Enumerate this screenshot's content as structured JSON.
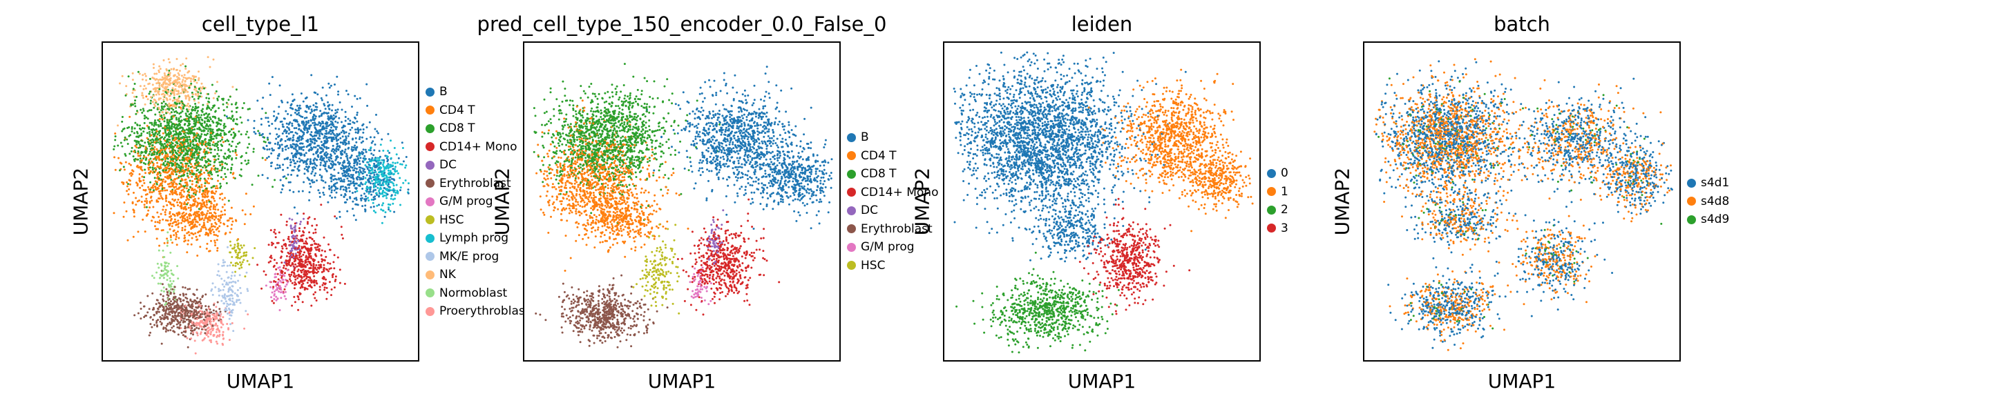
{
  "figure": {
    "colors": {
      "B": "#1f77b4",
      "CD4 T": "#ff7f0e",
      "CD8 T": "#2ca02c",
      "CD14+ Mono": "#d62728",
      "DC": "#9467bd",
      "Erythroblast": "#8c564b",
      "G/M prog": "#e377c2",
      "HSC": "#bcbd22",
      "Lymph prog": "#17becf",
      "MK/E prog": "#aec7e8",
      "NK": "#ffbb78",
      "Normoblast": "#98df8a",
      "Proerythroblast": "#ff9896",
      "0": "#1f77b4",
      "1": "#ff7f0e",
      "2": "#2ca02c",
      "3": "#d62728",
      "s4d1": "#1f77b4",
      "s4d8": "#ff7f0e",
      "s4d9": "#2ca02c"
    }
  },
  "chart_data": [
    {
      "type": "scatter",
      "title": "cell_type_l1",
      "xlabel": "UMAP1",
      "ylabel": "UMAP2",
      "ticks": "none",
      "legend": "right",
      "categories": [
        "B",
        "CD4 T",
        "CD8 T",
        "CD14+ Mono",
        "DC",
        "Erythroblast",
        "G/M prog",
        "HSC",
        "Lymph prog",
        "MK/E prog",
        "NK",
        "Normoblast",
        "Proerythroblast"
      ],
      "clusters": [
        {
          "series": "CD8 T",
          "x": 0.26,
          "y": 0.7,
          "rx": 0.17,
          "ry": 0.13,
          "n": 1300
        },
        {
          "series": "CD4 T",
          "x": 0.22,
          "y": 0.58,
          "rx": 0.14,
          "ry": 0.14,
          "n": 700
        },
        {
          "series": "NK",
          "x": 0.22,
          "y": 0.86,
          "rx": 0.1,
          "ry": 0.07,
          "n": 350
        },
        {
          "series": "CD4 T",
          "x": 0.3,
          "y": 0.45,
          "rx": 0.11,
          "ry": 0.08,
          "n": 350
        },
        {
          "series": "B",
          "x": 0.67,
          "y": 0.7,
          "rx": 0.15,
          "ry": 0.12,
          "n": 900
        },
        {
          "series": "B",
          "x": 0.8,
          "y": 0.58,
          "rx": 0.11,
          "ry": 0.09,
          "n": 350
        },
        {
          "series": "Lymph prog",
          "x": 0.88,
          "y": 0.58,
          "rx": 0.06,
          "ry": 0.08,
          "n": 250
        },
        {
          "series": "CD14+ Mono",
          "x": 0.63,
          "y": 0.31,
          "rx": 0.09,
          "ry": 0.1,
          "n": 500
        },
        {
          "series": "DC",
          "x": 0.6,
          "y": 0.38,
          "rx": 0.02,
          "ry": 0.06,
          "n": 60
        },
        {
          "series": "G/M prog",
          "x": 0.55,
          "y": 0.24,
          "rx": 0.03,
          "ry": 0.05,
          "n": 60
        },
        {
          "series": "Erythroblast",
          "x": 0.24,
          "y": 0.16,
          "rx": 0.09,
          "ry": 0.06,
          "n": 450
        },
        {
          "series": "Proerythroblast",
          "x": 0.33,
          "y": 0.12,
          "rx": 0.07,
          "ry": 0.05,
          "n": 200
        },
        {
          "series": "MK/E prog",
          "x": 0.4,
          "y": 0.22,
          "rx": 0.04,
          "ry": 0.08,
          "n": 120
        },
        {
          "series": "Normoblast",
          "x": 0.2,
          "y": 0.28,
          "rx": 0.03,
          "ry": 0.08,
          "n": 80
        },
        {
          "series": "HSC",
          "x": 0.43,
          "y": 0.33,
          "rx": 0.03,
          "ry": 0.05,
          "n": 60
        }
      ]
    },
    {
      "type": "scatter",
      "title": "pred_cell_type_150_encoder_0.0_False_0",
      "xlabel": "UMAP1",
      "ylabel": "UMAP2",
      "ticks": "none",
      "legend": "right",
      "categories": [
        "B",
        "CD4 T",
        "CD8 T",
        "CD14+ Mono",
        "DC",
        "Erythroblast",
        "G/M prog",
        "HSC"
      ],
      "clusters": [
        {
          "series": "CD8 T",
          "x": 0.26,
          "y": 0.7,
          "rx": 0.17,
          "ry": 0.13,
          "n": 1300
        },
        {
          "series": "CD4 T",
          "x": 0.22,
          "y": 0.57,
          "rx": 0.15,
          "ry": 0.15,
          "n": 900
        },
        {
          "series": "CD4 T",
          "x": 0.3,
          "y": 0.45,
          "rx": 0.11,
          "ry": 0.08,
          "n": 350
        },
        {
          "series": "B",
          "x": 0.67,
          "y": 0.7,
          "rx": 0.15,
          "ry": 0.12,
          "n": 900
        },
        {
          "series": "B",
          "x": 0.84,
          "y": 0.58,
          "rx": 0.13,
          "ry": 0.09,
          "n": 500
        },
        {
          "series": "CD14+ Mono",
          "x": 0.63,
          "y": 0.31,
          "rx": 0.09,
          "ry": 0.1,
          "n": 500
        },
        {
          "series": "DC",
          "x": 0.6,
          "y": 0.38,
          "rx": 0.02,
          "ry": 0.06,
          "n": 60
        },
        {
          "series": "G/M prog",
          "x": 0.55,
          "y": 0.24,
          "rx": 0.03,
          "ry": 0.05,
          "n": 60
        },
        {
          "series": "Erythroblast",
          "x": 0.25,
          "y": 0.15,
          "rx": 0.11,
          "ry": 0.07,
          "n": 600
        },
        {
          "series": "HSC",
          "x": 0.42,
          "y": 0.28,
          "rx": 0.05,
          "ry": 0.09,
          "n": 160
        }
      ]
    },
    {
      "type": "scatter",
      "title": "leiden",
      "xlabel": "UMAP1",
      "ylabel": "UMAP2",
      "ticks": "none",
      "legend": "right",
      "categories": [
        "0",
        "1",
        "2",
        "3"
      ],
      "clusters": [
        {
          "series": "0",
          "x": 0.3,
          "y": 0.7,
          "rx": 0.24,
          "ry": 0.2,
          "n": 2500
        },
        {
          "series": "0",
          "x": 0.4,
          "y": 0.42,
          "rx": 0.1,
          "ry": 0.08,
          "n": 300
        },
        {
          "series": "1",
          "x": 0.72,
          "y": 0.7,
          "rx": 0.14,
          "ry": 0.13,
          "n": 900
        },
        {
          "series": "1",
          "x": 0.86,
          "y": 0.57,
          "rx": 0.09,
          "ry": 0.08,
          "n": 350
        },
        {
          "series": "3",
          "x": 0.58,
          "y": 0.32,
          "rx": 0.09,
          "ry": 0.11,
          "n": 500
        },
        {
          "series": "2",
          "x": 0.32,
          "y": 0.16,
          "rx": 0.14,
          "ry": 0.09,
          "n": 700
        }
      ]
    },
    {
      "type": "scatter",
      "title": "batch",
      "xlabel": "UMAP1",
      "ylabel": "UMAP2",
      "ticks": "none",
      "legend": "right",
      "categories": [
        "s4d1",
        "s4d8",
        "s4d9"
      ],
      "mixed": true,
      "clusters": [
        {
          "x": 0.26,
          "y": 0.7,
          "rx": 0.19,
          "ry": 0.15,
          "n": 2000
        },
        {
          "x": 0.3,
          "y": 0.45,
          "rx": 0.12,
          "ry": 0.08,
          "n": 400
        },
        {
          "x": 0.67,
          "y": 0.7,
          "rx": 0.15,
          "ry": 0.12,
          "n": 800
        },
        {
          "x": 0.85,
          "y": 0.58,
          "rx": 0.1,
          "ry": 0.09,
          "n": 450
        },
        {
          "x": 0.6,
          "y": 0.32,
          "rx": 0.1,
          "ry": 0.1,
          "n": 450
        },
        {
          "x": 0.27,
          "y": 0.18,
          "rx": 0.12,
          "ry": 0.08,
          "n": 600
        }
      ],
      "mix_weights": {
        "s4d1": 0.52,
        "s4d8": 0.44,
        "s4d9": 0.04
      }
    }
  ]
}
